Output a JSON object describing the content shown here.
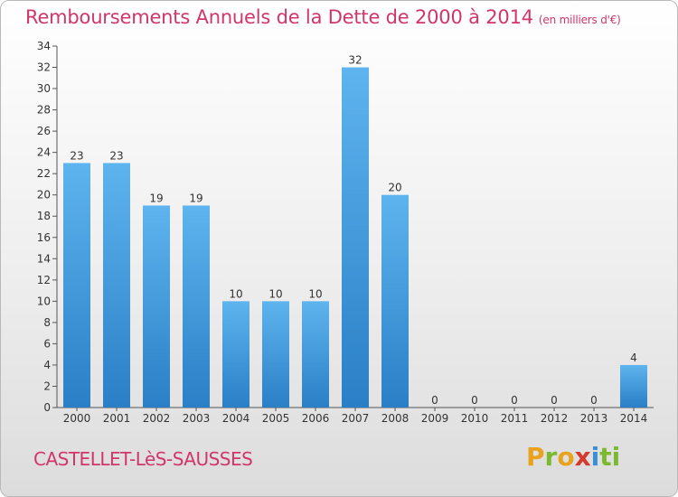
{
  "chart_data": {
    "type": "bar",
    "title": "Remboursements Annuels de la Dette de 2000 à 2014",
    "title_unit": "(en milliers d'€)",
    "categories": [
      "2000",
      "2001",
      "2002",
      "2003",
      "2004",
      "2005",
      "2006",
      "2007",
      "2008",
      "2009",
      "2010",
      "2011",
      "2012",
      "2013",
      "2014"
    ],
    "values": [
      23,
      23,
      19,
      19,
      10,
      10,
      10,
      32,
      20,
      0,
      0,
      0,
      0,
      0,
      4
    ],
    "ylim": [
      0,
      34
    ],
    "yticks": [
      0,
      2,
      4,
      6,
      8,
      10,
      12,
      14,
      16,
      18,
      20,
      22,
      24,
      26,
      28,
      30,
      32,
      34
    ],
    "grid": false,
    "bar_color": "#3f97dc",
    "title_color": "#d2356b"
  },
  "footer": {
    "commune": "CASTELLET-LèS-SAUSSES",
    "logo_letters": [
      "P",
      "r",
      "o",
      "x",
      "i",
      "ti"
    ]
  }
}
